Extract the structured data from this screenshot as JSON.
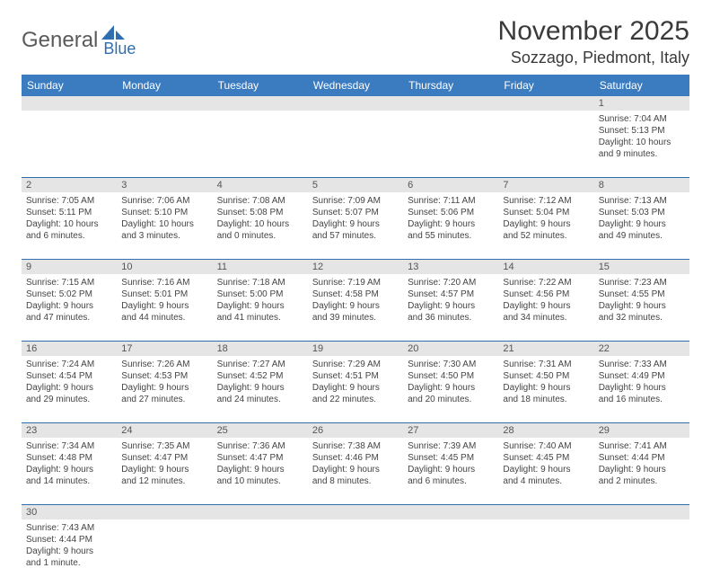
{
  "logo": {
    "part1": "General",
    "part2": "Blue"
  },
  "title": "November 2025",
  "location": "Sozzago, Piedmont, Italy",
  "colors": {
    "header_bg": "#3b7bbf",
    "header_text": "#ffffff",
    "daynum_bg": "#e5e5e5",
    "row_border": "#2f6fb0",
    "logo_gray": "#5a5a5a",
    "logo_blue": "#2f6fb0"
  },
  "day_headers": [
    "Sunday",
    "Monday",
    "Tuesday",
    "Wednesday",
    "Thursday",
    "Friday",
    "Saturday"
  ],
  "weeks": [
    {
      "nums": [
        "",
        "",
        "",
        "",
        "",
        "",
        "1"
      ],
      "cells": [
        null,
        null,
        null,
        null,
        null,
        null,
        {
          "sunrise": "Sunrise: 7:04 AM",
          "sunset": "Sunset: 5:13 PM",
          "dl1": "Daylight: 10 hours",
          "dl2": "and 9 minutes."
        }
      ]
    },
    {
      "nums": [
        "2",
        "3",
        "4",
        "5",
        "6",
        "7",
        "8"
      ],
      "cells": [
        {
          "sunrise": "Sunrise: 7:05 AM",
          "sunset": "Sunset: 5:11 PM",
          "dl1": "Daylight: 10 hours",
          "dl2": "and 6 minutes."
        },
        {
          "sunrise": "Sunrise: 7:06 AM",
          "sunset": "Sunset: 5:10 PM",
          "dl1": "Daylight: 10 hours",
          "dl2": "and 3 minutes."
        },
        {
          "sunrise": "Sunrise: 7:08 AM",
          "sunset": "Sunset: 5:08 PM",
          "dl1": "Daylight: 10 hours",
          "dl2": "and 0 minutes."
        },
        {
          "sunrise": "Sunrise: 7:09 AM",
          "sunset": "Sunset: 5:07 PM",
          "dl1": "Daylight: 9 hours",
          "dl2": "and 57 minutes."
        },
        {
          "sunrise": "Sunrise: 7:11 AM",
          "sunset": "Sunset: 5:06 PM",
          "dl1": "Daylight: 9 hours",
          "dl2": "and 55 minutes."
        },
        {
          "sunrise": "Sunrise: 7:12 AM",
          "sunset": "Sunset: 5:04 PM",
          "dl1": "Daylight: 9 hours",
          "dl2": "and 52 minutes."
        },
        {
          "sunrise": "Sunrise: 7:13 AM",
          "sunset": "Sunset: 5:03 PM",
          "dl1": "Daylight: 9 hours",
          "dl2": "and 49 minutes."
        }
      ]
    },
    {
      "nums": [
        "9",
        "10",
        "11",
        "12",
        "13",
        "14",
        "15"
      ],
      "cells": [
        {
          "sunrise": "Sunrise: 7:15 AM",
          "sunset": "Sunset: 5:02 PM",
          "dl1": "Daylight: 9 hours",
          "dl2": "and 47 minutes."
        },
        {
          "sunrise": "Sunrise: 7:16 AM",
          "sunset": "Sunset: 5:01 PM",
          "dl1": "Daylight: 9 hours",
          "dl2": "and 44 minutes."
        },
        {
          "sunrise": "Sunrise: 7:18 AM",
          "sunset": "Sunset: 5:00 PM",
          "dl1": "Daylight: 9 hours",
          "dl2": "and 41 minutes."
        },
        {
          "sunrise": "Sunrise: 7:19 AM",
          "sunset": "Sunset: 4:58 PM",
          "dl1": "Daylight: 9 hours",
          "dl2": "and 39 minutes."
        },
        {
          "sunrise": "Sunrise: 7:20 AM",
          "sunset": "Sunset: 4:57 PM",
          "dl1": "Daylight: 9 hours",
          "dl2": "and 36 minutes."
        },
        {
          "sunrise": "Sunrise: 7:22 AM",
          "sunset": "Sunset: 4:56 PM",
          "dl1": "Daylight: 9 hours",
          "dl2": "and 34 minutes."
        },
        {
          "sunrise": "Sunrise: 7:23 AM",
          "sunset": "Sunset: 4:55 PM",
          "dl1": "Daylight: 9 hours",
          "dl2": "and 32 minutes."
        }
      ]
    },
    {
      "nums": [
        "16",
        "17",
        "18",
        "19",
        "20",
        "21",
        "22"
      ],
      "cells": [
        {
          "sunrise": "Sunrise: 7:24 AM",
          "sunset": "Sunset: 4:54 PM",
          "dl1": "Daylight: 9 hours",
          "dl2": "and 29 minutes."
        },
        {
          "sunrise": "Sunrise: 7:26 AM",
          "sunset": "Sunset: 4:53 PM",
          "dl1": "Daylight: 9 hours",
          "dl2": "and 27 minutes."
        },
        {
          "sunrise": "Sunrise: 7:27 AM",
          "sunset": "Sunset: 4:52 PM",
          "dl1": "Daylight: 9 hours",
          "dl2": "and 24 minutes."
        },
        {
          "sunrise": "Sunrise: 7:29 AM",
          "sunset": "Sunset: 4:51 PM",
          "dl1": "Daylight: 9 hours",
          "dl2": "and 22 minutes."
        },
        {
          "sunrise": "Sunrise: 7:30 AM",
          "sunset": "Sunset: 4:50 PM",
          "dl1": "Daylight: 9 hours",
          "dl2": "and 20 minutes."
        },
        {
          "sunrise": "Sunrise: 7:31 AM",
          "sunset": "Sunset: 4:50 PM",
          "dl1": "Daylight: 9 hours",
          "dl2": "and 18 minutes."
        },
        {
          "sunrise": "Sunrise: 7:33 AM",
          "sunset": "Sunset: 4:49 PM",
          "dl1": "Daylight: 9 hours",
          "dl2": "and 16 minutes."
        }
      ]
    },
    {
      "nums": [
        "23",
        "24",
        "25",
        "26",
        "27",
        "28",
        "29"
      ],
      "cells": [
        {
          "sunrise": "Sunrise: 7:34 AM",
          "sunset": "Sunset: 4:48 PM",
          "dl1": "Daylight: 9 hours",
          "dl2": "and 14 minutes."
        },
        {
          "sunrise": "Sunrise: 7:35 AM",
          "sunset": "Sunset: 4:47 PM",
          "dl1": "Daylight: 9 hours",
          "dl2": "and 12 minutes."
        },
        {
          "sunrise": "Sunrise: 7:36 AM",
          "sunset": "Sunset: 4:47 PM",
          "dl1": "Daylight: 9 hours",
          "dl2": "and 10 minutes."
        },
        {
          "sunrise": "Sunrise: 7:38 AM",
          "sunset": "Sunset: 4:46 PM",
          "dl1": "Daylight: 9 hours",
          "dl2": "and 8 minutes."
        },
        {
          "sunrise": "Sunrise: 7:39 AM",
          "sunset": "Sunset: 4:45 PM",
          "dl1": "Daylight: 9 hours",
          "dl2": "and 6 minutes."
        },
        {
          "sunrise": "Sunrise: 7:40 AM",
          "sunset": "Sunset: 4:45 PM",
          "dl1": "Daylight: 9 hours",
          "dl2": "and 4 minutes."
        },
        {
          "sunrise": "Sunrise: 7:41 AM",
          "sunset": "Sunset: 4:44 PM",
          "dl1": "Daylight: 9 hours",
          "dl2": "and 2 minutes."
        }
      ]
    },
    {
      "nums": [
        "30",
        "",
        "",
        "",
        "",
        "",
        ""
      ],
      "cells": [
        {
          "sunrise": "Sunrise: 7:43 AM",
          "sunset": "Sunset: 4:44 PM",
          "dl1": "Daylight: 9 hours",
          "dl2": "and 1 minute."
        },
        null,
        null,
        null,
        null,
        null,
        null
      ]
    }
  ]
}
